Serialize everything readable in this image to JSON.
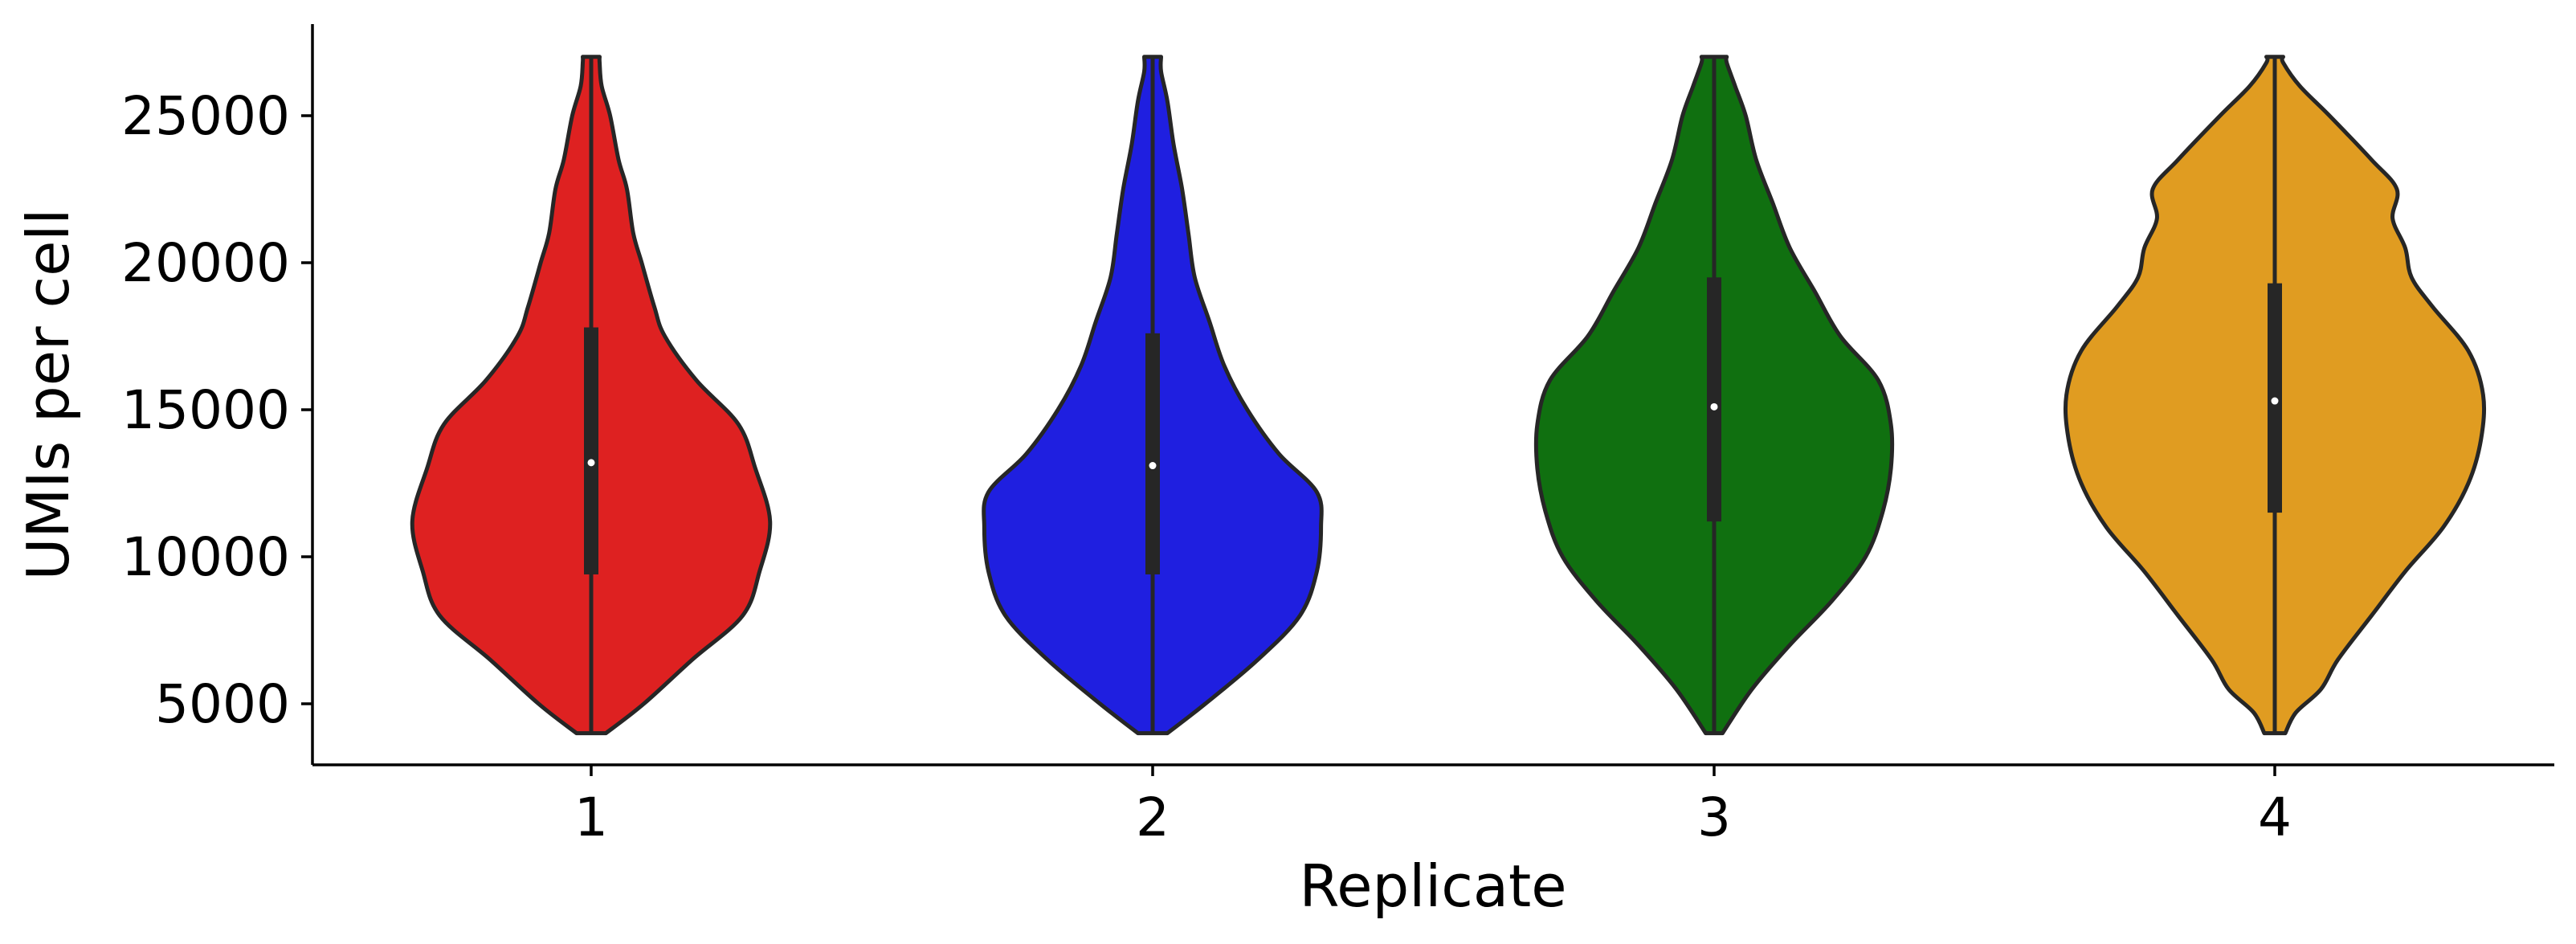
{
  "chart_data": {
    "type": "violin",
    "title": "",
    "xlabel": "Replicate",
    "ylabel": "UMIs per cell",
    "categories": [
      "1",
      "2",
      "3",
      "4"
    ],
    "ylim": [
      2800,
      28000
    ],
    "yticks": [
      5000,
      10000,
      15000,
      20000,
      25000
    ],
    "ytick_labels": [
      "5000",
      "10000",
      "15000",
      "20000",
      "25000"
    ],
    "grid": false,
    "legend": "none",
    "inner_box_color": "#262626",
    "median_color": "#ffffff",
    "series": [
      {
        "category": "1",
        "color": "#de2121",
        "min": 4000,
        "max": 27000,
        "q1": 9400,
        "median": 13200,
        "q3": 17800,
        "density_profile": [
          [
            4000,
            0.07
          ],
          [
            5000,
            0.25
          ],
          [
            6500,
            0.48
          ],
          [
            8000,
            0.72
          ],
          [
            9500,
            0.8
          ],
          [
            11200,
            0.85
          ],
          [
            13000,
            0.78
          ],
          [
            14500,
            0.7
          ],
          [
            16000,
            0.5
          ],
          [
            17500,
            0.35
          ],
          [
            18500,
            0.3
          ],
          [
            20000,
            0.24
          ],
          [
            21000,
            0.2
          ],
          [
            22500,
            0.17
          ],
          [
            23500,
            0.13
          ],
          [
            25000,
            0.09
          ],
          [
            26000,
            0.05
          ],
          [
            26800,
            0.04
          ],
          [
            27000,
            0.04
          ]
        ]
      },
      {
        "category": "2",
        "color": "#1f1fe0",
        "min": 4000,
        "max": 27000,
        "q1": 9400,
        "median": 13100,
        "q3": 17600,
        "density_profile": [
          [
            4000,
            0.07
          ],
          [
            5000,
            0.25
          ],
          [
            6500,
            0.5
          ],
          [
            8000,
            0.7
          ],
          [
            9500,
            0.78
          ],
          [
            11000,
            0.8
          ],
          [
            12200,
            0.78
          ],
          [
            13500,
            0.6
          ],
          [
            15000,
            0.45
          ],
          [
            16500,
            0.34
          ],
          [
            18000,
            0.27
          ],
          [
            19500,
            0.2
          ],
          [
            21000,
            0.17
          ],
          [
            22500,
            0.14
          ],
          [
            24000,
            0.1
          ],
          [
            25500,
            0.07
          ],
          [
            26500,
            0.04
          ],
          [
            27000,
            0.04
          ]
        ]
      },
      {
        "category": "3",
        "color": "#107010",
        "min": 4000,
        "max": 27000,
        "q1": 11200,
        "median": 15100,
        "q3": 19500,
        "density_profile": [
          [
            4000,
            0.04
          ],
          [
            5500,
            0.18
          ],
          [
            7000,
            0.36
          ],
          [
            8500,
            0.56
          ],
          [
            10000,
            0.72
          ],
          [
            11500,
            0.8
          ],
          [
            13000,
            0.84
          ],
          [
            14500,
            0.84
          ],
          [
            16000,
            0.78
          ],
          [
            17500,
            0.6
          ],
          [
            19000,
            0.48
          ],
          [
            20500,
            0.36
          ],
          [
            22000,
            0.28
          ],
          [
            23500,
            0.2
          ],
          [
            25000,
            0.15
          ],
          [
            26000,
            0.1
          ],
          [
            26800,
            0.06
          ],
          [
            27000,
            0.06
          ]
        ]
      },
      {
        "category": "4",
        "color": "#e09c21",
        "min": 4000,
        "max": 27000,
        "q1": 11500,
        "median": 15300,
        "q3": 19300,
        "density_profile": [
          [
            4000,
            0.05
          ],
          [
            4700,
            0.1
          ],
          [
            5500,
            0.22
          ],
          [
            6500,
            0.3
          ],
          [
            8000,
            0.46
          ],
          [
            9500,
            0.62
          ],
          [
            11000,
            0.8
          ],
          [
            12500,
            0.92
          ],
          [
            14000,
            0.98
          ],
          [
            15500,
            0.99
          ],
          [
            17000,
            0.92
          ],
          [
            18500,
            0.75
          ],
          [
            19500,
            0.65
          ],
          [
            20500,
            0.62
          ],
          [
            21500,
            0.56
          ],
          [
            22500,
            0.58
          ],
          [
            23500,
            0.46
          ],
          [
            25000,
            0.26
          ],
          [
            26000,
            0.12
          ],
          [
            26800,
            0.04
          ],
          [
            27000,
            0.04
          ]
        ]
      }
    ]
  }
}
